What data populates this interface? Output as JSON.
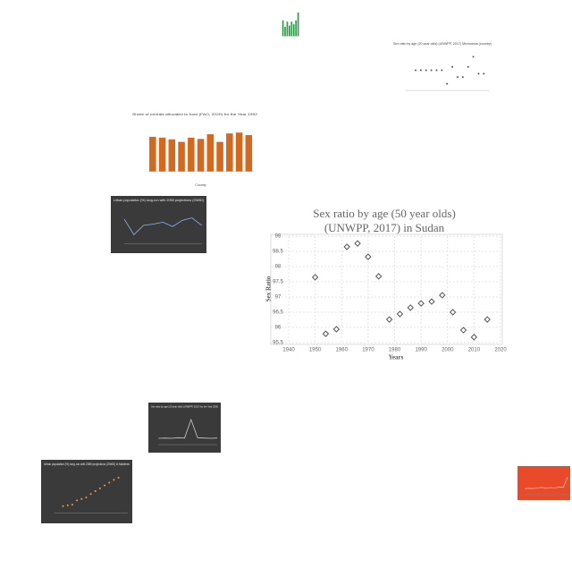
{
  "chart_data": [
    {
      "type": "scatter",
      "title": "Sex ratio by age (50 year olds) (UNWPP, 2017) in Sudan",
      "x_label": "Years",
      "y_label": "Sex Ratio",
      "x": [
        1950,
        1954,
        1958,
        1962,
        1966,
        1970,
        1974,
        1978,
        1982,
        1986,
        1990,
        1994,
        1998,
        2002,
        2006,
        2010,
        2015
      ],
      "values": [
        97.65,
        95.79,
        95.94,
        98.65,
        98.76,
        98.32,
        97.68,
        96.26,
        96.44,
        96.65,
        96.79,
        96.85,
        97.06,
        96.5,
        95.91,
        95.68,
        96.26
      ],
      "color": "#555555",
      "xlim": [
        1940,
        2020
      ],
      "xticks": [
        1940,
        1950,
        1960,
        1970,
        1980,
        1990,
        2000,
        2010,
        2020
      ],
      "ylim": [
        95.5,
        99
      ],
      "yticks": [
        95.5,
        96,
        96.5,
        97,
        97.5,
        98,
        98.5,
        99
      ],
      "grid": true
    },
    {
      "type": "bar",
      "values": [
        60,
        35,
        55,
        40,
        55,
        45,
        60,
        90
      ],
      "color": "#2e9e4a",
      "ylim": [
        0,
        100
      ],
      "background": "#ffffff"
    },
    {
      "type": "scatter",
      "title": "Sex ratio by age (20 year olds) (UNWPP, 2017) Micronesia (country)",
      "x": [
        1950,
        1955,
        1960,
        1965,
        1970,
        1975,
        1980,
        1985,
        1990,
        1995,
        2000,
        2005,
        2010,
        2015
      ],
      "values": [
        104,
        104,
        104,
        104,
        104,
        104,
        100,
        105,
        102,
        102,
        105,
        108,
        103,
        103
      ],
      "color": "#555555",
      "xlim": [
        1940,
        2020
      ],
      "ylim": [
        98,
        110
      ],
      "background": "#ffffff"
    },
    {
      "type": "bar",
      "title": "Share of cereals allocated to food (FAO, 2020) for the Year 1992",
      "x_label": "Country",
      "values": [
        82,
        80,
        76,
        70,
        80,
        77,
        88,
        70,
        90,
        92,
        86
      ],
      "color": "#d2691e",
      "ylim": [
        0,
        120
      ],
      "background": "#ffffff"
    },
    {
      "type": "line",
      "title": "Urban population (%) long-run with 2050 projections (OWID)",
      "values": [
        60,
        35,
        50,
        52,
        55,
        48,
        58,
        62,
        50
      ],
      "color": "#8ab4f8",
      "ylim": [
        20,
        80
      ],
      "background": "#3a3a3a"
    },
    {
      "type": "line",
      "title": "Sex ratio by age (20 year olds) (UNWPP, 2017) for the Year 2000",
      "values": [
        20,
        21,
        20,
        22,
        21,
        80,
        22,
        21,
        20,
        21
      ],
      "color": "#cccccc",
      "ylim": [
        0,
        100
      ],
      "background": "#3a3a3a"
    },
    {
      "type": "scatter",
      "title": "Urban population (%) long-run with 2050 projections (OWID) in Maldives",
      "x": [
        1990,
        1995,
        2000,
        2005,
        2010,
        2015,
        2020,
        2025,
        2030,
        2035,
        2040,
        2045,
        2050
      ],
      "values": [
        25,
        26,
        27,
        33,
        35,
        37,
        42,
        46,
        50,
        54,
        58,
        62,
        65
      ],
      "color": "#e8a050",
      "xlim": [
        1980,
        2060
      ],
      "ylim": [
        15,
        75
      ],
      "background": "#3a3a3a"
    },
    {
      "type": "line",
      "values": [
        20,
        22,
        21,
        23,
        25,
        22,
        24,
        23,
        26,
        25,
        60
      ],
      "color": "#ffb0a0",
      "ylim": [
        0,
        80
      ],
      "background": "#e84a2a"
    }
  ]
}
